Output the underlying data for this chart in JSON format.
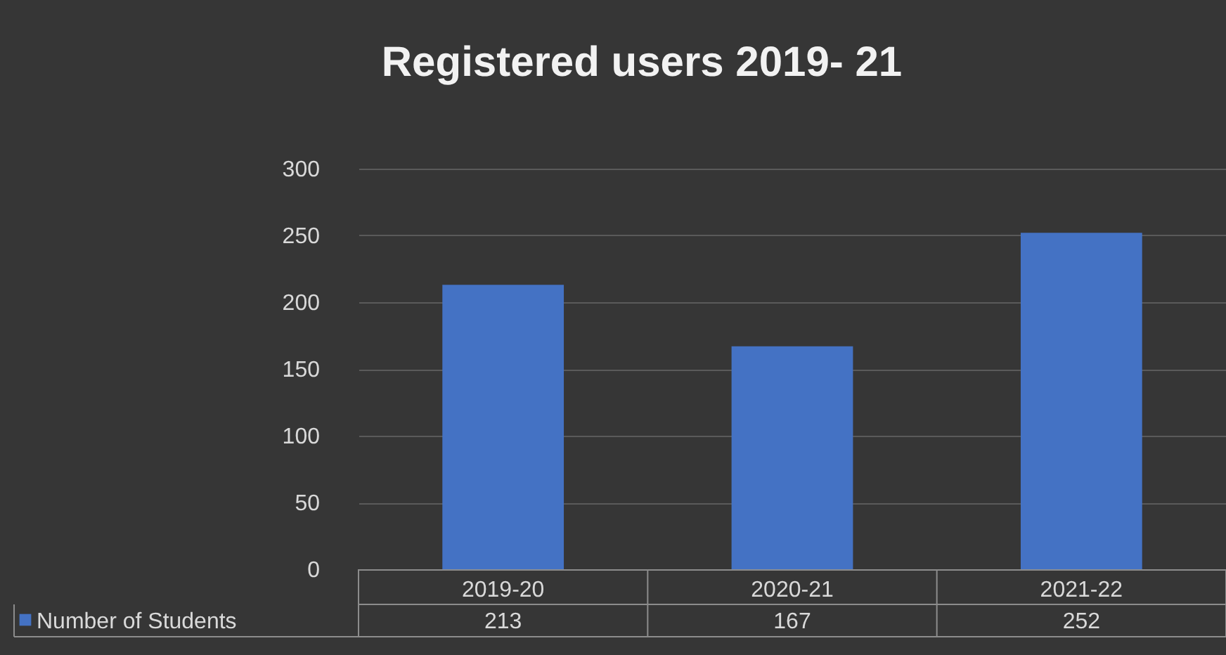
{
  "chart_data": {
    "type": "bar",
    "title": "Registered users 2019- 21",
    "categories": [
      "2019-20",
      "2020-21",
      "2021-22"
    ],
    "series": [
      {
        "name": "Number of Students",
        "color": "#4472c4",
        "values": [
          213,
          167,
          252
        ]
      }
    ],
    "ylim": [
      0,
      300
    ],
    "yticks": [
      0,
      50,
      100,
      150,
      200,
      250,
      300
    ],
    "grid": "y",
    "data_labels": true
  }
}
